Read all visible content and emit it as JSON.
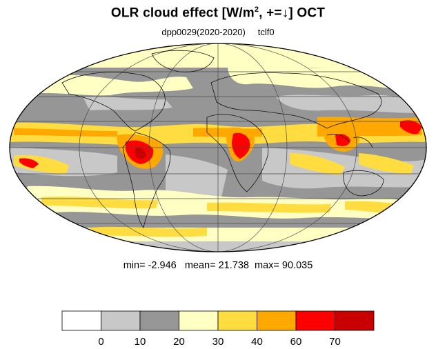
{
  "title": {
    "main": "OLR cloud effect [W/m",
    "superscript": "2",
    "suffix": ", +=↓]  OCT"
  },
  "subtitle": {
    "experiment": "dpp0029(2020-2020)",
    "variable": "tclf0"
  },
  "stats": {
    "min_label": "min=",
    "min": "-2.946",
    "mean_label": "mean=",
    "mean": "21.738",
    "max_label": "max=",
    "max": "90.035"
  },
  "colorbar": {
    "colors": [
      "#ffffff",
      "#c8c8c8",
      "#969696",
      "#ffffc4",
      "#ffdc40",
      "#ffa800",
      "#ff0000",
      "#c80000"
    ],
    "tick_labels": [
      "0",
      "10",
      "20",
      "30",
      "40",
      "60",
      "70"
    ]
  },
  "map": {
    "projection": "mollweide",
    "grid": true,
    "coastlines": true
  }
}
